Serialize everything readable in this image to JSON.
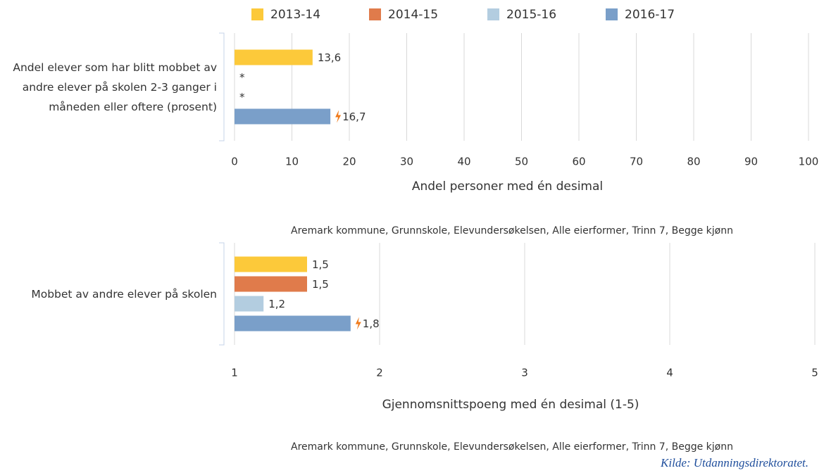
{
  "chart_data": [
    {
      "type": "bar",
      "orientation": "horizontal",
      "categories": [
        "Andel elever som har blitt mobbet av andre elever på skolen 2-3 ganger i måneden eller oftere (prosent)"
      ],
      "series": [
        {
          "name": "2013-14",
          "color": "#fcc93a",
          "values": [
            13.6
          ],
          "value_labels": [
            "13,6"
          ]
        },
        {
          "name": "2014-15",
          "color": "#e07b4b",
          "values": [
            null
          ],
          "value_labels": [
            "*"
          ]
        },
        {
          "name": "2015-16",
          "color": "#b3cde0",
          "values": [
            null
          ],
          "value_labels": [
            "*"
          ]
        },
        {
          "name": "2016-17",
          "color": "#7a9fc9",
          "values": [
            16.7
          ],
          "value_labels": [
            "16,7"
          ]
        }
      ],
      "xlim": [
        0,
        100
      ],
      "xticks": [
        0,
        10,
        20,
        30,
        40,
        50,
        60,
        70,
        80,
        90,
        100
      ],
      "grid": true,
      "xlabel": "Andel personer med én desimal",
      "note": "Aremark kommune, Grunnskole, Elevundersøkelsen, Alle eierformer, Trinn 7, Begge kjønn"
    },
    {
      "type": "bar",
      "orientation": "horizontal",
      "categories": [
        "Mobbet av andre elever på skolen"
      ],
      "series": [
        {
          "name": "2013-14",
          "color": "#fcc93a",
          "values": [
            1.5
          ],
          "value_labels": [
            "1,5"
          ]
        },
        {
          "name": "2014-15",
          "color": "#e07b4b",
          "values": [
            1.5
          ],
          "value_labels": [
            "1,5"
          ]
        },
        {
          "name": "2015-16",
          "color": "#b3cde0",
          "values": [
            1.2
          ],
          "value_labels": [
            "1,2"
          ]
        },
        {
          "name": "2016-17",
          "color": "#7a9fc9",
          "values": [
            1.8
          ],
          "value_labels": [
            "1,8"
          ]
        }
      ],
      "xlim": [
        1,
        5
      ],
      "xticks": [
        1,
        2,
        3,
        4,
        5
      ],
      "grid": true,
      "xlabel": "Gjennomsnittspoeng med én desimal (1-5)",
      "note": "Aremark kommune, Grunnskole, Elevundersøkelsen, Alle eierformer, Trinn 7, Begge kjønn"
    }
  ],
  "source": "Kilde: Utdanningsdirektoratet."
}
